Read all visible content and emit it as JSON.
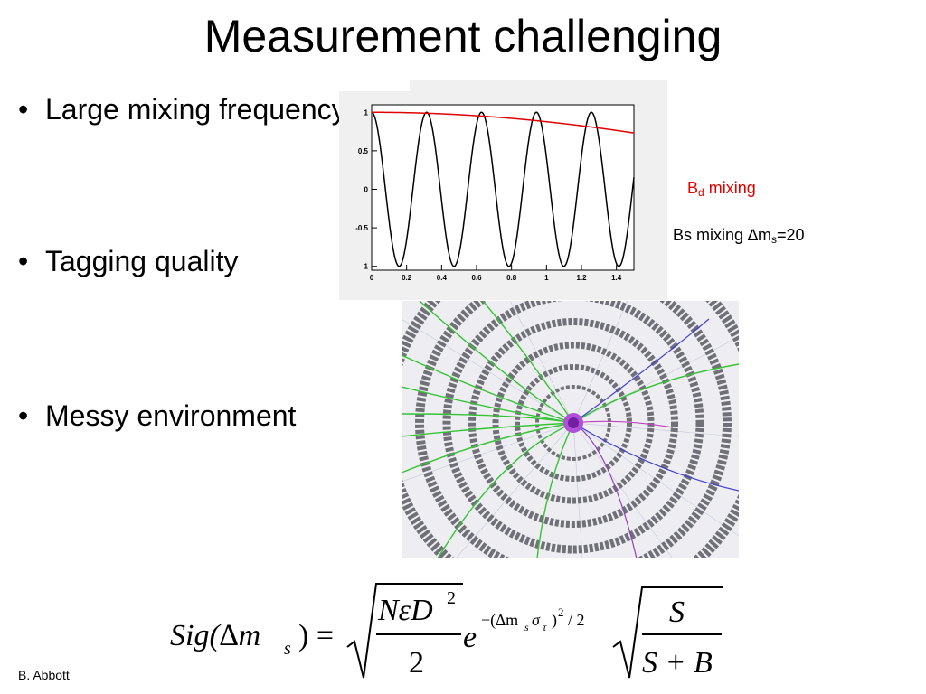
{
  "slide": {
    "title": "Measurement challenging",
    "bullets": [
      {
        "text": "Large mixing frequency"
      },
      {
        "text": "Tagging quality"
      },
      {
        "text": "Messy environment"
      }
    ],
    "bullet_char": "•",
    "credit": "B. Abbott"
  },
  "legend": {
    "bd_main": "B",
    "bd_sub": "d",
    "bd_rest": " mixing",
    "bd_color": "#e00000",
    "bs_text": "Bs mixing ∆m",
    "bs_sub": "s",
    "bs_rest": "=20",
    "bs_color": "#000000"
  },
  "chart_data": {
    "type": "line",
    "title": "",
    "xlabel": "",
    "ylabel": "",
    "xlim": [
      0,
      1.5
    ],
    "ylim": [
      -1.05,
      1.05
    ],
    "xticks": [
      "0",
      "0.2",
      "0.4",
      "0.6",
      "0.8",
      "1",
      "1.2",
      "1.4"
    ],
    "yticks": [
      "-1",
      "-0.5",
      "0",
      "0.5",
      "1"
    ],
    "series": [
      {
        "name": "Bs mixing",
        "kind": "cos",
        "frequency": 20,
        "x_end": 1.5,
        "color": "#000000"
      },
      {
        "name": "Bd mixing",
        "kind": "cos",
        "frequency": 0.5,
        "x_end": 1.5,
        "color": "#e00000"
      }
    ],
    "grid": false
  },
  "event_display": {
    "description_icon": "detector-event-display-icon"
  },
  "formula": {
    "lhs": "Sig(∆m",
    "lhs_sub": "s",
    "lhs_close": ") =",
    "num1": "NεD",
    "num1_sup": "2",
    "den1": "2",
    "exp_base": "e",
    "exponent": "−(∆m",
    "exp_sub_s": "s",
    "exp_sigma": "σ",
    "exp_sub_tau": "τ",
    "exp_close": ")",
    "exp_sup": "2",
    "exp_tail": "/ 2",
    "num2": "S",
    "den2": "S + B"
  }
}
